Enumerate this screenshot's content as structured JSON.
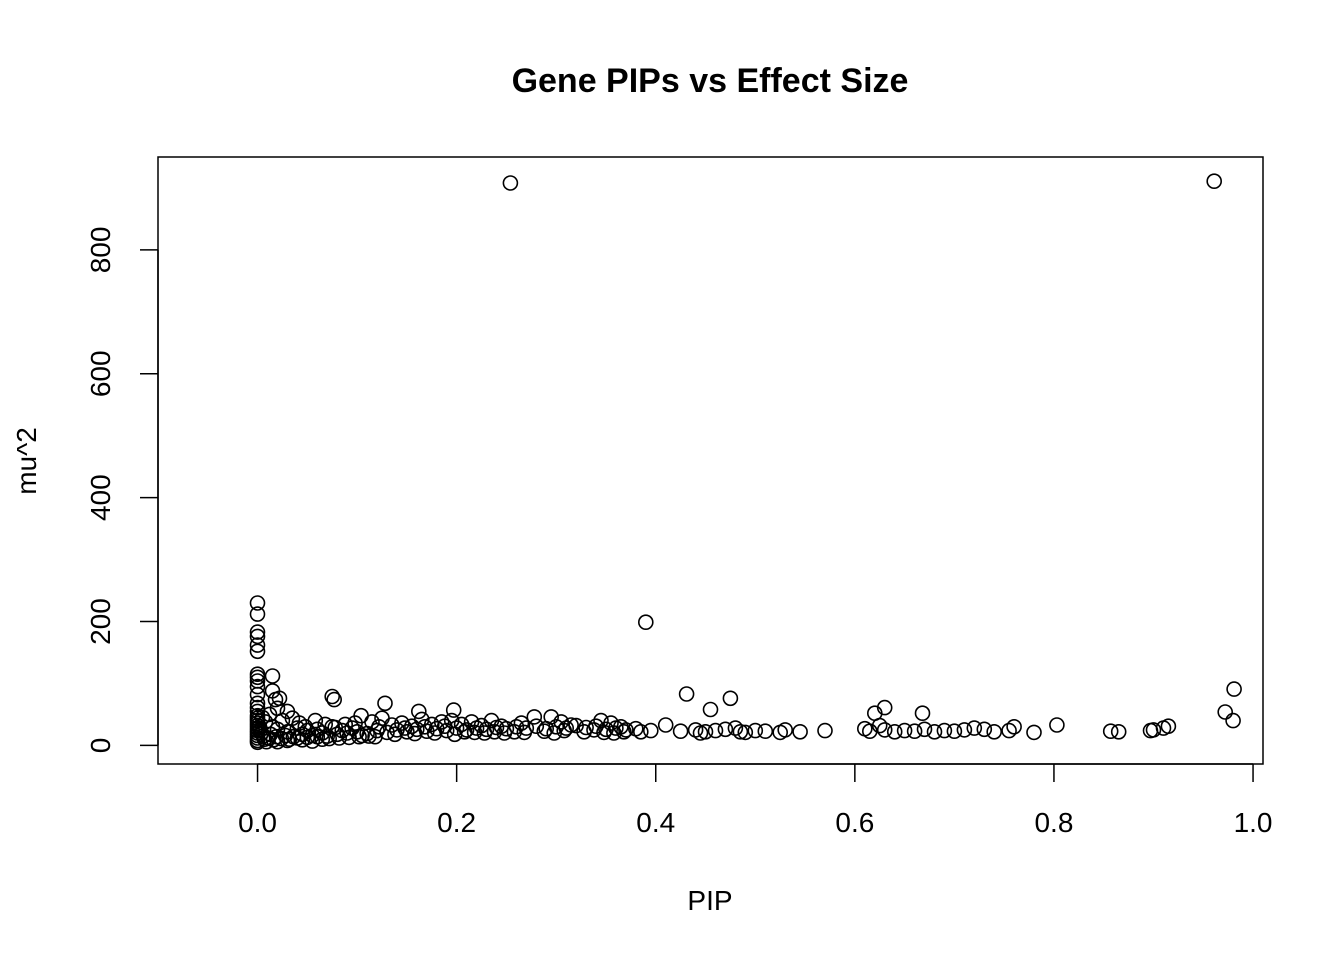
{
  "chart_data": {
    "type": "scatter",
    "title": "Gene PIPs vs Effect Size",
    "xlabel": "PIP",
    "ylabel": "mu^2",
    "xlim": [
      -0.1,
      1.01
    ],
    "ylim": [
      -30,
      950
    ],
    "x_ticks": [
      0.0,
      0.2,
      0.4,
      0.6,
      0.8,
      1.0
    ],
    "x_tick_labels": [
      "0.0",
      "0.2",
      "0.4",
      "0.6",
      "0.8",
      "1.0"
    ],
    "y_ticks": [
      0,
      200,
      400,
      600,
      800
    ],
    "y_tick_labels": [
      "0",
      "200",
      "400",
      "600",
      "800"
    ],
    "grid": false,
    "legend": "none",
    "marker": "open-circle",
    "series": [
      {
        "points": [
          [
            0.254,
            908
          ],
          [
            0.961,
            911
          ],
          [
            0.39,
            199
          ],
          [
            0.981,
            91
          ],
          [
            0.972,
            54
          ],
          [
            0.98,
            40
          ],
          [
            0.431,
            83
          ],
          [
            0.475,
            76
          ],
          [
            0.455,
            58
          ],
          [
            0.63,
            61
          ],
          [
            0.668,
            52
          ],
          [
            0.62,
            52
          ],
          [
            0.075,
            79
          ],
          [
            0.077,
            74
          ],
          [
            0.128,
            68
          ],
          [
            0.197,
            57
          ],
          [
            0.162,
            55
          ],
          [
            0.015,
            112
          ],
          [
            0.0,
            230
          ],
          [
            0.0,
            212
          ],
          [
            0.0,
            183
          ],
          [
            0.0,
            176
          ],
          [
            0.0,
            162
          ],
          [
            0.0,
            152
          ],
          [
            0.0,
            115
          ],
          [
            0.0,
            110
          ],
          [
            0.0,
            104
          ],
          [
            0.0,
            95
          ],
          [
            0.0,
            82
          ],
          [
            0.0,
            68
          ],
          [
            0.0,
            61
          ],
          [
            0.0,
            55
          ],
          [
            0.0,
            48
          ],
          [
            0.0,
            44
          ],
          [
            0.0,
            40
          ],
          [
            0.0,
            36
          ],
          [
            0.0,
            32
          ],
          [
            0.0,
            28
          ],
          [
            0.0,
            24
          ],
          [
            0.0,
            20
          ],
          [
            0.0,
            16
          ],
          [
            0.0,
            12
          ],
          [
            0.0,
            8
          ],
          [
            0.0,
            5
          ],
          [
            0.015,
            88
          ],
          [
            0.018,
            74
          ],
          [
            0.022,
            76
          ],
          [
            0.02,
            60
          ],
          [
            0.03,
            55
          ],
          [
            0.012,
            50
          ],
          [
            0.005,
            45
          ],
          [
            0.008,
            38
          ],
          [
            0.002,
            30
          ],
          [
            0.003,
            25
          ],
          [
            0.004,
            20
          ],
          [
            0.006,
            15
          ],
          [
            0.007,
            10
          ],
          [
            0.009,
            6
          ],
          [
            0.011,
            12
          ],
          [
            0.013,
            18
          ],
          [
            0.016,
            9
          ],
          [
            0.019,
            14
          ],
          [
            0.024,
            11
          ],
          [
            0.028,
            16
          ],
          [
            0.032,
            10
          ],
          [
            0.036,
            14
          ],
          [
            0.04,
            12
          ],
          [
            0.045,
            18
          ],
          [
            0.05,
            13
          ],
          [
            0.055,
            16
          ],
          [
            0.06,
            14
          ],
          [
            0.065,
            20
          ],
          [
            0.07,
            15
          ],
          [
            0.08,
            18
          ],
          [
            0.09,
            20
          ],
          [
            0.1,
            22
          ],
          [
            0.11,
            19
          ],
          [
            0.12,
            24
          ],
          [
            0.13,
            21
          ],
          [
            0.14,
            25
          ],
          [
            0.15,
            22
          ],
          [
            0.16,
            26
          ],
          [
            0.17,
            23
          ],
          [
            0.18,
            27
          ],
          [
            0.19,
            24
          ],
          [
            0.2,
            28
          ],
          [
            0.21,
            25
          ],
          [
            0.22,
            28
          ],
          [
            0.23,
            26
          ],
          [
            0.24,
            29
          ],
          [
            0.25,
            27
          ],
          [
            0.26,
            30
          ],
          [
            0.27,
            28
          ],
          [
            0.28,
            31
          ],
          [
            0.29,
            27
          ],
          [
            0.3,
            30
          ],
          [
            0.31,
            28
          ],
          [
            0.32,
            32
          ],
          [
            0.33,
            29
          ],
          [
            0.34,
            31
          ],
          [
            0.35,
            26
          ],
          [
            0.36,
            28
          ],
          [
            0.37,
            25
          ],
          [
            0.38,
            27
          ],
          [
            0.395,
            24
          ],
          [
            0.41,
            33
          ],
          [
            0.425,
            23
          ],
          [
            0.44,
            25
          ],
          [
            0.45,
            22
          ],
          [
            0.47,
            26
          ],
          [
            0.48,
            28
          ],
          [
            0.49,
            21
          ],
          [
            0.5,
            24
          ],
          [
            0.51,
            23
          ],
          [
            0.525,
            21
          ],
          [
            0.53,
            25
          ],
          [
            0.545,
            22
          ],
          [
            0.57,
            24
          ],
          [
            0.61,
            27
          ],
          [
            0.615,
            23
          ],
          [
            0.625,
            32
          ],
          [
            0.63,
            25
          ],
          [
            0.64,
            22
          ],
          [
            0.65,
            24
          ],
          [
            0.66,
            23
          ],
          [
            0.67,
            26
          ],
          [
            0.68,
            22
          ],
          [
            0.69,
            24
          ],
          [
            0.7,
            23
          ],
          [
            0.71,
            25
          ],
          [
            0.72,
            28
          ],
          [
            0.73,
            26
          ],
          [
            0.74,
            22
          ],
          [
            0.755,
            24
          ],
          [
            0.76,
            30
          ],
          [
            0.78,
            21
          ],
          [
            0.803,
            33
          ],
          [
            0.857,
            23
          ],
          [
            0.865,
            22
          ],
          [
            0.897,
            24
          ],
          [
            0.9,
            25
          ],
          [
            0.91,
            28
          ],
          [
            0.915,
            31
          ],
          [
            0.025,
            40
          ],
          [
            0.035,
            44
          ],
          [
            0.042,
            36
          ],
          [
            0.048,
            30
          ],
          [
            0.058,
            40
          ],
          [
            0.068,
            34
          ],
          [
            0.078,
            29
          ],
          [
            0.088,
            34
          ],
          [
            0.098,
            36
          ],
          [
            0.104,
            48
          ],
          [
            0.115,
            38
          ],
          [
            0.125,
            44
          ],
          [
            0.135,
            33
          ],
          [
            0.145,
            36
          ],
          [
            0.155,
            31
          ],
          [
            0.165,
            42
          ],
          [
            0.175,
            34
          ],
          [
            0.185,
            38
          ],
          [
            0.195,
            40
          ],
          [
            0.205,
            34
          ],
          [
            0.215,
            38
          ],
          [
            0.225,
            32
          ],
          [
            0.235,
            40
          ],
          [
            0.245,
            31
          ],
          [
            0.265,
            36
          ],
          [
            0.278,
            46
          ],
          [
            0.295,
            46
          ],
          [
            0.305,
            38
          ],
          [
            0.315,
            33
          ],
          [
            0.345,
            40
          ],
          [
            0.355,
            36
          ],
          [
            0.365,
            30
          ],
          [
            0.015,
            30
          ],
          [
            0.02,
            26
          ],
          [
            0.03,
            22
          ],
          [
            0.04,
            28
          ],
          [
            0.05,
            24
          ],
          [
            0.06,
            26
          ],
          [
            0.075,
            30
          ],
          [
            0.085,
            24
          ],
          [
            0.095,
            28
          ],
          [
            0.105,
            16
          ],
          [
            0.118,
            14
          ],
          [
            0.122,
            30
          ],
          [
            0.138,
            18
          ],
          [
            0.148,
            28
          ],
          [
            0.158,
            19
          ],
          [
            0.168,
            30
          ],
          [
            0.178,
            20
          ],
          [
            0.188,
            31
          ],
          [
            0.198,
            18
          ],
          [
            0.208,
            22
          ],
          [
            0.218,
            21
          ],
          [
            0.228,
            20
          ],
          [
            0.238,
            22
          ],
          [
            0.248,
            20
          ],
          [
            0.258,
            22
          ],
          [
            0.268,
            21
          ],
          [
            0.288,
            23
          ],
          [
            0.298,
            20
          ],
          [
            0.308,
            24
          ],
          [
            0.328,
            22
          ],
          [
            0.338,
            25
          ],
          [
            0.348,
            21
          ],
          [
            0.358,
            20
          ],
          [
            0.368,
            22
          ],
          [
            0.385,
            22
          ],
          [
            0.445,
            20
          ],
          [
            0.46,
            24
          ],
          [
            0.485,
            22
          ],
          [
            0.02,
            6
          ],
          [
            0.03,
            8
          ],
          [
            0.045,
            9
          ],
          [
            0.055,
            7
          ],
          [
            0.065,
            10
          ],
          [
            0.072,
            11
          ],
          [
            0.082,
            12
          ],
          [
            0.092,
            13
          ],
          [
            0.102,
            14
          ],
          [
            0.112,
            15
          ]
        ]
      }
    ]
  }
}
